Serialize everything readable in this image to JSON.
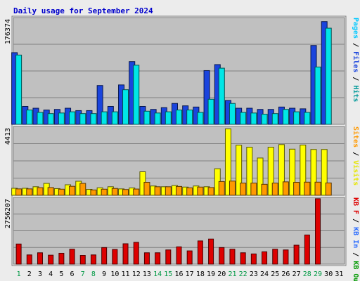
{
  "chart_data": {
    "type": "bar",
    "title": "Daily usage for September 2024",
    "days": [
      "1",
      "2",
      "3",
      "4",
      "5",
      "6",
      "7",
      "8",
      "9",
      "10",
      "11",
      "12",
      "13",
      "14",
      "15",
      "16",
      "17",
      "18",
      "19",
      "20",
      "21",
      "22",
      "23",
      "24",
      "25",
      "26",
      "27",
      "28",
      "29",
      "30",
      "31"
    ],
    "weekend_days": [
      "1",
      "7",
      "8",
      "14",
      "15",
      "21",
      "22",
      "28",
      "29"
    ],
    "colors": {
      "hits": "#00e6e6",
      "files": "#1a44dd",
      "pages": "#00c8ff",
      "visits": "#ffff00",
      "sites": "#ff9900",
      "kbin": "#2266ff",
      "kbout": "#009900",
      "kbf": "#dd0000",
      "weekend_label": "#009944",
      "weekday_label": "#000000"
    },
    "panels": [
      {
        "id": "hits-files-pages",
        "max_label": "176374",
        "max": 176374,
        "side_label": [
          {
            "text": "Pages",
            "color": "#00c8ff"
          },
          {
            "text": " / ",
            "color": "#000000"
          },
          {
            "text": "Files",
            "color": "#1a44dd"
          },
          {
            "text": " / ",
            "color": "#000000"
          },
          {
            "text": "Hits",
            "color": "#009999"
          }
        ],
        "series": [
          {
            "key": "files",
            "values": [
              120000,
              30000,
              27000,
              24000,
              25000,
              27000,
              23000,
              23000,
              65000,
              30000,
              66000,
              105000,
              30000,
              25000,
              28000,
              35000,
              31000,
              29000,
              90000,
              100000,
              40000,
              27000,
              27000,
              25000,
              25000,
              29000,
              27000,
              26000,
              132000,
              172000,
              0
            ]
          },
          {
            "key": "hits",
            "values": [
              116000,
              24000,
              20000,
              18000,
              19000,
              21000,
              18000,
              18000,
              21000,
              21000,
              58000,
              99000,
              22000,
              19000,
              21000,
              24000,
              24000,
              20000,
              42000,
              94000,
              35000,
              20000,
              19000,
              17000,
              18000,
              25000,
              21000,
              20000,
              96000,
              161000,
              0
            ]
          }
        ]
      },
      {
        "id": "visits-sites",
        "max_label": "4413",
        "max": 4413,
        "side_label": [
          {
            "text": "Sites",
            "color": "#ff9900"
          },
          {
            "text": " / ",
            "color": "#000000"
          },
          {
            "text": "Visits",
            "color": "#e6e600"
          }
        ],
        "series": [
          {
            "key": "visits",
            "values": [
              460,
              460,
              560,
              780,
              440,
              690,
              920,
              390,
              490,
              560,
              420,
              480,
              1540,
              610,
              560,
              640,
              540,
              610,
              560,
              1740,
              4350,
              3280,
              3150,
              2440,
              3150,
              3320,
              3020,
              3290,
              3000,
              3000,
              0
            ]
          },
          {
            "key": "sites",
            "values": [
              420,
              420,
              500,
              510,
              400,
              590,
              780,
              350,
              400,
              450,
              380,
              410,
              850,
              560,
              560,
              580,
              490,
              540,
              510,
              900,
              930,
              800,
              800,
              720,
              800,
              880,
              850,
              860,
              860,
              810,
              0
            ]
          }
        ]
      },
      {
        "id": "kbytes",
        "max_label": "2756207",
        "max": 2756207,
        "side_label": [
          {
            "text": "KB F",
            "color": "#dd0000"
          },
          {
            "text": " / ",
            "color": "#000000"
          },
          {
            "text": "KB In",
            "color": "#2266ff"
          },
          {
            "text": " / ",
            "color": "#000000"
          },
          {
            "text": "KB Out",
            "color": "#009900"
          }
        ],
        "series": [
          {
            "key": "kbf",
            "values": [
              850000,
              390000,
              480000,
              380000,
              460000,
              630000,
              370000,
              390000,
              700000,
              620000,
              860000,
              920000,
              480000,
              480000,
              600000,
              730000,
              560000,
              980000,
              1060000,
              700000,
              630000,
              480000,
              430000,
              520000,
              630000,
              600000,
              800000,
              1230000,
              2760000,
              0,
              0
            ]
          }
        ]
      }
    ]
  }
}
